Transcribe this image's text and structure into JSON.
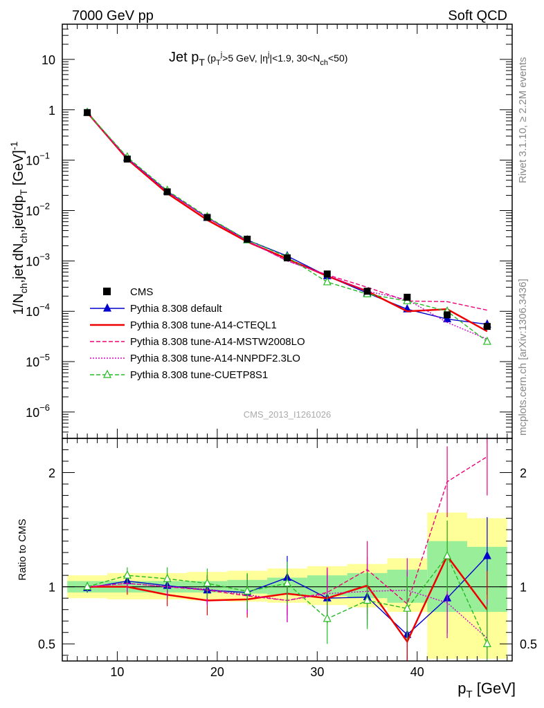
{
  "header": {
    "left": "7000 GeV pp",
    "right": "Soft QCD"
  },
  "side_labels": {
    "upper": "Rivet 3.1.10, ≥ 2.2M events",
    "lower": "mcplots.cern.ch [arXiv:1306.3436]"
  },
  "watermark": "CMS_2013_I1261026",
  "chart_data": {
    "type": "line",
    "title": "Jet p_T (p_T^j>5 GeV, |η^j|<1.9, 30<N_ch<50)",
    "xlabel": "p_T [GeV]",
    "ylabel": "1/N_ch,jet dN_ch,jet/dp_T [GeV]^-1",
    "ratio_ylabel": "Ratio to CMS",
    "xlim": [
      4.5,
      49.5
    ],
    "ylim": [
      3e-07,
      50
    ],
    "yscale": "log",
    "ratio_ylim": [
      0.35,
      2.3
    ],
    "x_ticks": [
      10,
      20,
      30,
      40
    ],
    "y_ticks": [
      "10^-6",
      "10^-5",
      "10^-4",
      "10^-3",
      "10^-2",
      "10^-1",
      "1",
      "10"
    ],
    "ratio_ticks": [
      0.5,
      1,
      2
    ],
    "legend_position": "left",
    "x": [
      7,
      11,
      15,
      19,
      23,
      27,
      31,
      35,
      39,
      43,
      47
    ],
    "data": {
      "name": "CMS",
      "values": [
        0.88,
        0.105,
        0.0235,
        0.0073,
        0.0027,
        0.00115,
        0.00055,
        0.00025,
        0.00019,
        8.5e-05,
        5e-05
      ]
    },
    "bands": {
      "stat": [
        [
          0.95,
          1.05
        ],
        [
          0.95,
          1.05
        ],
        [
          0.95,
          1.05
        ],
        [
          0.95,
          1.05
        ],
        [
          0.94,
          1.06
        ],
        [
          0.93,
          1.08
        ],
        [
          0.92,
          1.1
        ],
        [
          0.9,
          1.12
        ],
        [
          0.86,
          1.15
        ],
        [
          0.78,
          1.4
        ],
        [
          0.78,
          1.35
        ]
      ],
      "total": [
        [
          0.9,
          1.1
        ],
        [
          0.89,
          1.12
        ],
        [
          0.89,
          1.12
        ],
        [
          0.88,
          1.13
        ],
        [
          0.87,
          1.14
        ],
        [
          0.86,
          1.16
        ],
        [
          0.84,
          1.18
        ],
        [
          0.82,
          1.2
        ],
        [
          0.78,
          1.25
        ],
        [
          0.37,
          1.65
        ],
        [
          0.37,
          1.6
        ]
      ]
    },
    "series": [
      {
        "name": "Pythia 8.308 default",
        "color": "#0000cc",
        "style": "solid",
        "marker": "triangle-filled",
        "values": [
          0.88,
          0.11,
          0.024,
          0.0072,
          0.0026,
          0.00125,
          0.0005,
          0.00023,
          0.00011,
          7e-05,
          5.5e-05
        ],
        "ratio": [
          0.99,
          1.05,
          1.01,
          0.97,
          0.95,
          1.08,
          0.9,
          0.91,
          0.58,
          0.9,
          1.27
        ]
      },
      {
        "name": "Pythia 8.308 tune-A14-CTEQL1",
        "color": "#ee0000",
        "style": "solid-thick",
        "marker": "none",
        "values": [
          0.88,
          0.105,
          0.022,
          0.0065,
          0.0024,
          0.0011,
          0.0005,
          0.00025,
          0.0001,
          0.00011,
          4e-05
        ],
        "ratio": [
          1.0,
          1.0,
          0.93,
          0.88,
          0.89,
          0.94,
          0.9,
          1.01,
          0.52,
          1.27,
          0.8
        ]
      },
      {
        "name": "Pythia 8.308 tune-A14-MSTW2008LO",
        "color": "#ee0077",
        "style": "dashed",
        "marker": "none",
        "values": [
          0.88,
          0.108,
          0.0235,
          0.0072,
          0.0025,
          0.001,
          0.00053,
          0.0003,
          0.00016,
          0.000155,
          0.000105
        ],
        "ratio": [
          1.0,
          1.03,
          1.0,
          0.97,
          0.92,
          0.88,
          0.95,
          1.15,
          0.85,
          1.92,
          2.14
        ]
      },
      {
        "name": "Pythia 8.308 tune-A14-NNPDF2.3LO",
        "color": "#cc00cc",
        "style": "dotted",
        "marker": "none",
        "values": [
          0.88,
          0.108,
          0.0235,
          0.0072,
          0.0025,
          0.001,
          0.00052,
          0.00025,
          0.00017,
          6e-05,
          2.8e-05
        ],
        "ratio": [
          1.0,
          1.03,
          1.0,
          0.98,
          0.93,
          0.88,
          0.94,
          0.96,
          0.97,
          0.86,
          0.55
        ]
      },
      {
        "name": "Pythia 8.308 tune-CUETP8S1",
        "color": "#22bb22",
        "style": "dashed",
        "marker": "triangle-open",
        "values": [
          0.88,
          0.115,
          0.025,
          0.0075,
          0.0026,
          0.0012,
          0.00038,
          0.00022,
          0.00016,
          0.0001,
          2.5e-05
        ],
        "ratio": [
          1.0,
          1.1,
          1.07,
          1.03,
          0.96,
          1.03,
          0.72,
          0.88,
          0.81,
          1.27,
          0.5
        ]
      }
    ]
  }
}
